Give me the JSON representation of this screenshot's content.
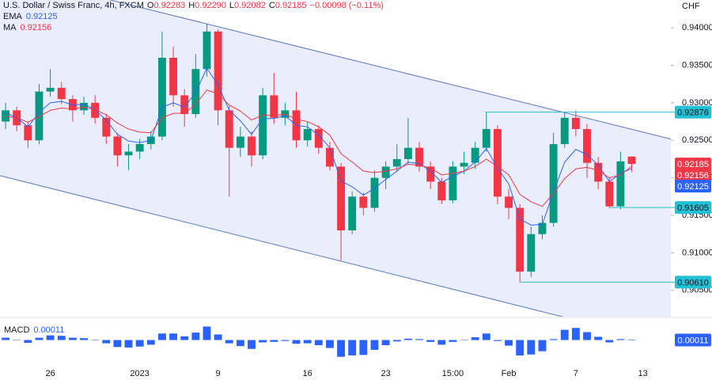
{
  "chart_data": {
    "type": "candlestick",
    "title": "U.S. Dollar / Swiss Franc, 4h, FXCM",
    "header_values": [
      {
        "key": "O",
        "label": "0.92283"
      },
      {
        "key": "H",
        "label": "0.92290"
      },
      {
        "key": "L",
        "label": "0.92082"
      },
      {
        "key": "C",
        "label": "0.92185"
      }
    ],
    "change": "−0.00098 (−0.11%)",
    "axis_unit": "CHF",
    "categories": [
      null,
      null,
      null,
      null,
      "26",
      null,
      null,
      null,
      null,
      null,
      null,
      null,
      "2023",
      null,
      null,
      null,
      null,
      null,
      null,
      "9",
      null,
      null,
      null,
      null,
      null,
      null,
      null,
      "16",
      null,
      null,
      null,
      null,
      null,
      null,
      "23",
      null,
      null,
      null,
      null,
      null,
      "15:00",
      null,
      null,
      null,
      null,
      "Feb",
      null,
      null,
      null,
      null,
      null,
      "7",
      null,
      null,
      null,
      null,
      null,
      "13",
      null,
      null
    ],
    "open": [
      0.9275,
      0.929,
      0.927,
      0.925,
      0.9315,
      0.932,
      0.9305,
      0.929,
      0.93,
      0.928,
      0.9255,
      0.923,
      0.9235,
      0.9245,
      0.9255,
      0.936,
      0.931,
      0.9285,
      0.9345,
      0.9395,
      0.929,
      0.924,
      0.9255,
      0.923,
      0.931,
      0.928,
      0.929,
      0.925,
      0.9265,
      0.924,
      0.9215,
      0.913,
      0.9175,
      0.916,
      0.92,
      0.9215,
      0.9225,
      0.924,
      0.9215,
      0.9195,
      0.917,
      0.9215,
      0.922,
      0.924,
      0.9265,
      0.9175,
      0.916,
      0.9075,
      0.9125,
      0.914,
      0.9245,
      0.928,
      0.9265,
      0.922,
      0.9195,
      0.9162,
      0.92283,
      null,
      null,
      null
    ],
    "high": [
      0.93,
      0.9295,
      0.9275,
      0.9325,
      0.9345,
      0.9328,
      0.931,
      0.9308,
      0.931,
      0.9285,
      0.926,
      0.9245,
      0.9252,
      0.9262,
      0.9395,
      0.9375,
      0.9318,
      0.9365,
      0.9405,
      0.9398,
      0.9296,
      0.9268,
      0.9262,
      0.932,
      0.934,
      0.93,
      0.9315,
      0.9275,
      0.927,
      0.9248,
      0.922,
      0.9182,
      0.918,
      0.921,
      0.9222,
      0.9245,
      0.928,
      0.9248,
      0.9222,
      0.92,
      0.9222,
      0.9235,
      0.9248,
      0.9288,
      0.927,
      0.9185,
      0.9165,
      0.9135,
      0.915,
      0.926,
      0.9288,
      0.929,
      0.9272,
      0.9228,
      0.92,
      0.9235,
      0.9229,
      null,
      null,
      null
    ],
    "low": [
      0.9265,
      0.9262,
      0.924,
      0.9245,
      0.9308,
      0.9298,
      0.9275,
      0.9284,
      0.9272,
      0.9245,
      0.9215,
      0.921,
      0.9225,
      0.9238,
      0.925,
      0.9295,
      0.9268,
      0.928,
      0.9335,
      0.927,
      0.9175,
      0.9228,
      0.9215,
      0.9225,
      0.9272,
      0.927,
      0.924,
      0.9242,
      0.9232,
      0.921,
      0.909,
      0.9125,
      0.915,
      0.9155,
      0.9185,
      0.9208,
      0.9218,
      0.9208,
      0.9185,
      0.9165,
      0.9166,
      0.9205,
      0.9212,
      0.9235,
      0.9165,
      0.9145,
      0.9061,
      0.9068,
      0.9118,
      0.9135,
      0.924,
      0.9255,
      0.92,
      0.9185,
      0.916,
      0.9158,
      0.92082,
      null,
      null,
      null
    ],
    "close": [
      0.929,
      0.927,
      0.925,
      0.9315,
      0.932,
      0.9305,
      0.929,
      0.93,
      0.928,
      0.9255,
      0.923,
      0.9235,
      0.9245,
      0.9255,
      0.936,
      0.931,
      0.9285,
      0.9345,
      0.9395,
      0.929,
      0.924,
      0.9255,
      0.923,
      0.931,
      0.928,
      0.929,
      0.925,
      0.9265,
      0.924,
      0.9215,
      0.913,
      0.9175,
      0.916,
      0.92,
      0.9215,
      0.9225,
      0.924,
      0.9215,
      0.9195,
      0.917,
      0.9215,
      0.922,
      0.924,
      0.9265,
      0.9175,
      0.916,
      0.9075,
      0.9125,
      0.914,
      0.9245,
      0.928,
      0.9265,
      0.922,
      0.9195,
      0.9162,
      0.9222,
      0.92185,
      null,
      null,
      null
    ],
    "up_color": "#089981",
    "down_color": "#f23645",
    "ylim": [
      0.9015,
      0.9437
    ],
    "yticks": [
      {
        "value": 0.905,
        "label": "0.90500"
      },
      {
        "value": 0.91,
        "label": "0.91000"
      },
      {
        "value": 0.915,
        "label": "0.91500"
      },
      {
        "value": 0.92,
        "label": "0.92000"
      },
      {
        "value": 0.925,
        "label": "0.92500"
      },
      {
        "value": 0.93,
        "label": "0.93000"
      },
      {
        "value": 0.935,
        "label": "0.93500"
      },
      {
        "value": 0.94,
        "label": "0.94000"
      }
    ],
    "grid": false,
    "channel": {
      "upper": [
        0.94717,
        0.92536
      ],
      "lower": [
        0.92011,
        0.89805
      ],
      "color": "#5b78c9",
      "fill": "#e9edfc"
    },
    "series": [
      {
        "name": "EMA",
        "color": "#2962ff",
        "values": [
          0.9287,
          0.928,
          0.9268,
          0.9287,
          0.93,
          0.9302,
          0.9297,
          0.9298,
          0.9291,
          0.9277,
          0.9258,
          0.9249,
          0.9247,
          0.925,
          0.9294,
          0.93,
          0.9294,
          0.9314,
          0.9346,
          0.9324,
          0.929,
          0.9276,
          0.9258,
          0.9279,
          0.9279,
          0.9283,
          0.927,
          0.9268,
          0.9257,
          0.924,
          0.9196,
          0.9188,
          0.9177,
          0.9186,
          0.9198,
          0.9209,
          0.9221,
          0.9219,
          0.9209,
          0.9194,
          0.9202,
          0.9209,
          0.9221,
          0.9239,
          0.9213,
          0.9192,
          0.9145,
          0.9137,
          0.9138,
          0.9181,
          0.9221,
          0.9238,
          0.9231,
          0.9217,
          0.9195,
          0.9206,
          0.92125,
          null,
          null,
          null
        ]
      },
      {
        "name": "MA",
        "color": "#f23645",
        "values": [
          0.9282,
          0.928,
          0.9274,
          0.9282,
          0.929,
          0.9293,
          0.9292,
          0.9294,
          0.9291,
          0.9284,
          0.9273,
          0.9265,
          0.9261,
          0.926,
          0.928,
          0.9286,
          0.9286,
          0.9298,
          0.9317,
          0.9312,
          0.9297,
          0.9289,
          0.9277,
          0.9284,
          0.9283,
          0.9285,
          0.9278,
          0.9275,
          0.9268,
          0.9257,
          0.9232,
          0.9221,
          0.9209,
          0.9207,
          0.9209,
          0.9212,
          0.9218,
          0.9217,
          0.9213,
          0.9204,
          0.9206,
          0.9209,
          0.9215,
          0.9225,
          0.9215,
          0.9204,
          0.9178,
          0.9168,
          0.9162,
          0.9179,
          0.9199,
          0.9212,
          0.9214,
          0.921,
          0.92,
          0.9204,
          0.92156,
          null,
          null,
          null
        ]
      }
    ],
    "levels": [
      {
        "value": 0.92876,
        "label": "0.92876",
        "from": 43
      },
      {
        "value": 0.91605,
        "label": "0.91605",
        "from": 54
      },
      {
        "value": 0.9061,
        "label": "0.90610",
        "from": 46
      }
    ],
    "level_color": "#22c1d6",
    "macd": {
      "name": "MACD",
      "color": "#2962ff",
      "ylim": [
        -0.0045,
        0.004
      ],
      "values": [
        0.0005,
        0.0,
        -0.0006,
        0.0005,
        0.001,
        0.0009,
        0.0005,
        0.0004,
        0.0,
        -0.0007,
        -0.0015,
        -0.0016,
        -0.0014,
        -0.001,
        0.0014,
        0.0014,
        0.0008,
        0.0016,
        0.0029,
        0.0012,
        -0.0007,
        -0.0013,
        -0.0019,
        -0.0005,
        -0.0004,
        -0.0002,
        -0.0008,
        -0.0007,
        -0.0011,
        -0.0017,
        -0.0036,
        -0.0033,
        -0.0032,
        -0.0021,
        -0.0011,
        -0.0003,
        0.0003,
        0.0002,
        -0.0004,
        -0.001,
        -0.0004,
        0.0,
        0.0006,
        0.0014,
        -0.0002,
        -0.0012,
        -0.0033,
        -0.0031,
        -0.0024,
        0.0002,
        0.0022,
        0.0026,
        0.0017,
        0.0007,
        -0.0005,
        0.0002,
        0.00011,
        null,
        null,
        null
      ]
    }
  }
}
